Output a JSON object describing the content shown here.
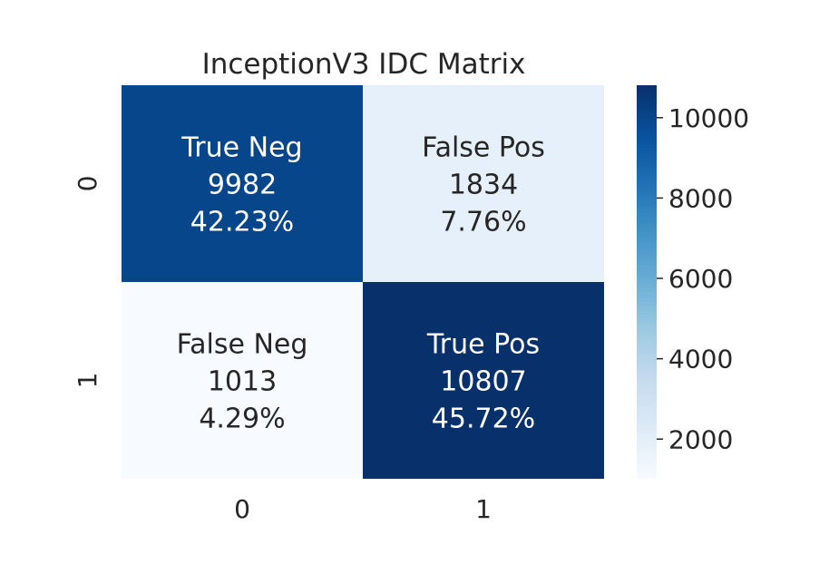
{
  "chart_data": {
    "type": "heatmap",
    "title": "InceptionV3 IDC Matrix",
    "xlabel": "",
    "ylabel": "",
    "x_categories": [
      "0",
      "1"
    ],
    "y_categories": [
      "0",
      "1"
    ],
    "values": [
      [
        9982,
        1834
      ],
      [
        1013,
        10807
      ]
    ],
    "cell_labels": [
      [
        "True Neg",
        "False Pos"
      ],
      [
        "False Neg",
        "True Pos"
      ]
    ],
    "cell_percentages": [
      [
        "42.23%",
        "7.76%"
      ],
      [
        "4.29%",
        "45.72%"
      ]
    ],
    "colormap": "Blues",
    "colorbar": {
      "range": [
        1013,
        10807
      ],
      "ticks": [
        2000,
        4000,
        6000,
        8000,
        10000
      ]
    },
    "colors": {
      "text_dark": "#262626",
      "text_light": "#ffffff"
    }
  }
}
